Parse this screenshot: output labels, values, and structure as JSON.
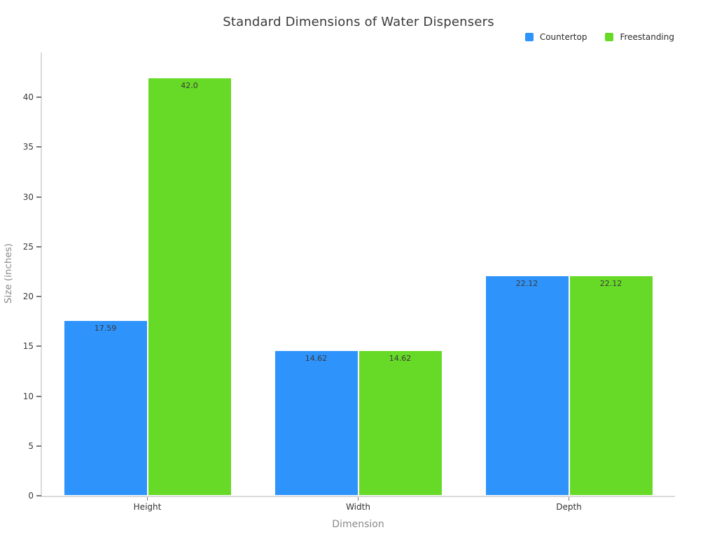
{
  "title": "Standard Dimensions of Water Dispensers",
  "chart_data": {
    "type": "bar",
    "title": "Standard Dimensions of Water Dispensers",
    "categories": [
      "Height",
      "Width",
      "Depth"
    ],
    "series": [
      {
        "name": "Countertop",
        "color": "#2E93FA",
        "values": [
          17.59,
          14.62,
          22.12
        ],
        "labels": [
          "17.59",
          "14.62",
          "22.12"
        ]
      },
      {
        "name": "Freestanding",
        "color": "#66DA26",
        "values": [
          42.0,
          14.62,
          22.12
        ],
        "labels": [
          "42.0",
          "14.62",
          "22.12"
        ]
      }
    ],
    "xlabel": "Dimension",
    "ylabel": "Size (inches)",
    "ylim": [
      0,
      44.5
    ],
    "yticks": [
      0,
      5,
      10,
      15,
      20,
      25,
      30,
      35,
      40
    ],
    "legend_position": "top-right",
    "grid": false,
    "value_labels_position": "inside-top"
  }
}
